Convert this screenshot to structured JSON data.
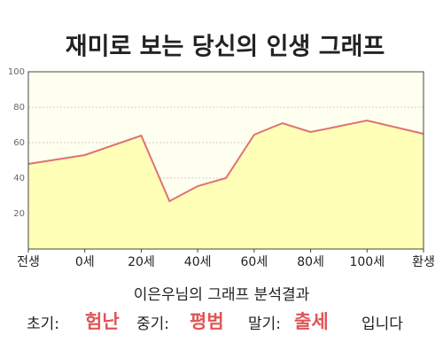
{
  "chart_data": {
    "type": "area",
    "title": "재미로 보는 당신의 인생 그래프",
    "x": [
      -20,
      0,
      20,
      30,
      40,
      50,
      60,
      70,
      80,
      100,
      120
    ],
    "values": [
      48,
      53,
      64,
      27,
      35.5,
      40,
      64.5,
      71,
      66,
      72.5,
      65
    ],
    "line_color": "#e07070",
    "fill_color": "#ffffb8",
    "background": "#fffff0",
    "xlim": [
      -20,
      120
    ],
    "xticks": [
      {
        "value": -20,
        "label": "전생"
      },
      {
        "value": 0,
        "label": "0세"
      },
      {
        "value": 20,
        "label": "20세"
      },
      {
        "value": 40,
        "label": "40세"
      },
      {
        "value": 60,
        "label": "60세"
      },
      {
        "value": 80,
        "label": "80세"
      },
      {
        "value": 100,
        "label": "100세"
      },
      {
        "value": 120,
        "label": "환생"
      }
    ],
    "ylim": [
      0,
      100
    ],
    "yticks": [
      20,
      40,
      60,
      80,
      100
    ],
    "grid": true
  },
  "result": {
    "heading": "이은우님의 그래프 분석결과",
    "early_label": "초기:",
    "early": "험난",
    "middle_label": "중기:",
    "middle": "평범",
    "late_label": "말기:",
    "late": "출세",
    "ending": "입니다"
  }
}
